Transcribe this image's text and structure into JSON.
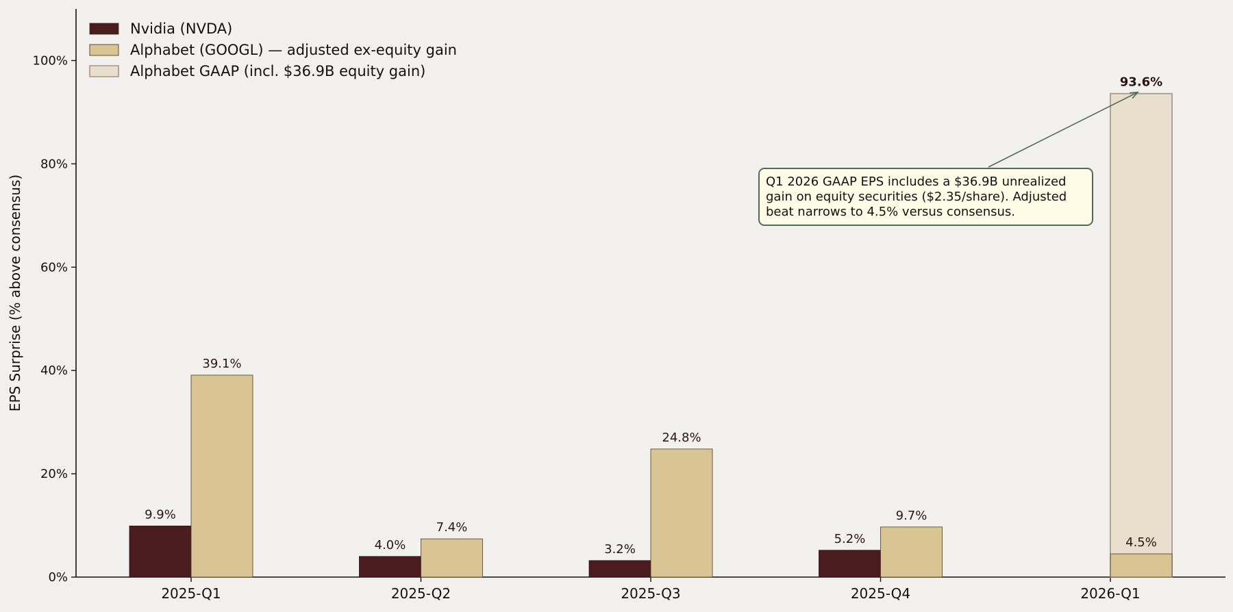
{
  "chart_data": {
    "type": "bar",
    "title": "",
    "xlabel": "",
    "ylabel": "EPS Surprise (% above consensus)",
    "categories": [
      "2025-Q1",
      "2025-Q2",
      "2025-Q3",
      "2025-Q4",
      "2026-Q1"
    ],
    "ylim": [
      0,
      110
    ],
    "yticks": [
      0,
      20,
      40,
      60,
      80,
      100
    ],
    "ytick_labels": [
      "0%",
      "20%",
      "40%",
      "60%",
      "80%",
      "100%"
    ],
    "grid": false,
    "legend_position": "top-left",
    "series": [
      {
        "name": "Nvidia (NVDA)",
        "color": "#4a1c1f",
        "values": [
          9.9,
          4.0,
          3.2,
          5.2,
          null
        ],
        "labels": [
          "9.9%",
          "4.0%",
          "3.2%",
          "5.2%",
          ""
        ]
      },
      {
        "name": "Alphabet (GOOGL) — adjusted ex-equity gain",
        "color": "#d9c493",
        "values": [
          39.1,
          7.4,
          24.8,
          9.7,
          4.5
        ],
        "labels": [
          "39.1%",
          "7.4%",
          "24.8%",
          "9.7%",
          "4.5%"
        ]
      },
      {
        "name": "Alphabet GAAP (incl. $36.9B equity gain)",
        "color": "#e8dfcd",
        "edge_color": "#b0a096",
        "values": [
          null,
          null,
          null,
          null,
          93.6
        ],
        "labels": [
          "",
          "",
          "",
          "",
          "93.6%"
        ],
        "label_color": "#4a1c1f"
      }
    ],
    "annotation": {
      "text": "Q1 2026 GAAP EPS includes a $36.9B unrealized gain on equity securities ($2.35/share). Adjusted beat narrows to 4.5% versus consensus.",
      "border_color": "#4e6b56",
      "background": "#fffbe6",
      "arrow_target_category": "2026-Q1",
      "arrow_target_value": 93.6
    }
  }
}
